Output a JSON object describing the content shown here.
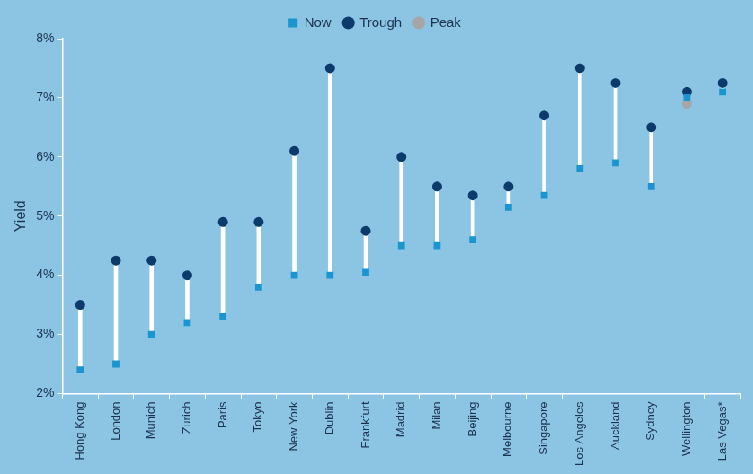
{
  "chart_data": {
    "type": "dumbbell",
    "y_label": "Yield",
    "categories": [
      "Hong Kong",
      "London",
      "Munich",
      "Zurich",
      "Paris",
      "Tokyo",
      "New York",
      "Dublin",
      "Frankfurt",
      "Madrid",
      "Milan",
      "Beijing",
      "Melbourne",
      "Singapore",
      "Los Angeles",
      "Auckland",
      "Sydney",
      "Wellington",
      "Las Vegas*"
    ],
    "series": [
      {
        "name": "Peak",
        "color": "#a6a6a6",
        "marker": "circle",
        "values": [
          null,
          null,
          null,
          null,
          null,
          null,
          null,
          null,
          null,
          null,
          null,
          null,
          null,
          null,
          null,
          null,
          null,
          6.9,
          null
        ]
      },
      {
        "name": "Trough",
        "color": "#0b3a6b",
        "marker": "circle",
        "values": [
          3.5,
          4.25,
          4.25,
          4.0,
          4.9,
          4.9,
          6.1,
          7.5,
          4.75,
          6.0,
          5.5,
          5.35,
          5.5,
          6.7,
          7.5,
          7.25,
          6.5,
          7.1,
          7.25
        ]
      },
      {
        "name": "Now",
        "color": "#1a95d0",
        "marker": "square",
        "values": [
          2.4,
          2.5,
          3.0,
          3.2,
          3.3,
          3.8,
          4.0,
          4.0,
          4.05,
          4.5,
          4.5,
          4.6,
          5.15,
          5.35,
          5.8,
          5.9,
          5.5,
          7.0,
          7.1
        ]
      }
    ],
    "ylim": [
      2,
      8
    ],
    "yticks": [
      {
        "value": 2,
        "label": "2%"
      },
      {
        "value": 3,
        "label": "3%"
      },
      {
        "value": 4,
        "label": "4%"
      },
      {
        "value": 5,
        "label": "5%"
      },
      {
        "value": 6,
        "label": "6%"
      },
      {
        "value": 7,
        "label": "7%"
      },
      {
        "value": 8,
        "label": "8%"
      }
    ],
    "grid": false,
    "legend": "top"
  }
}
